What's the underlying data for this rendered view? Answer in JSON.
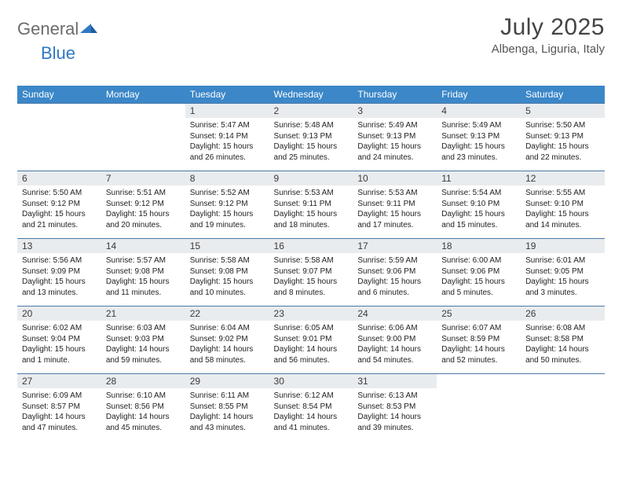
{
  "brand": {
    "part1": "General",
    "part2": "Blue"
  },
  "title": "July 2025",
  "location": "Albenga, Liguria, Italy",
  "header_bg": "#3b87c8",
  "daybar_bg": "#e9ecef",
  "rule_color": "#4a7aa8",
  "weekdays": [
    "Sunday",
    "Monday",
    "Tuesday",
    "Wednesday",
    "Thursday",
    "Friday",
    "Saturday"
  ],
  "weeks": [
    [
      null,
      null,
      {
        "n": "1",
        "sr": "5:47 AM",
        "ss": "9:14 PM",
        "dl": "15 hours and 26 minutes."
      },
      {
        "n": "2",
        "sr": "5:48 AM",
        "ss": "9:13 PM",
        "dl": "15 hours and 25 minutes."
      },
      {
        "n": "3",
        "sr": "5:49 AM",
        "ss": "9:13 PM",
        "dl": "15 hours and 24 minutes."
      },
      {
        "n": "4",
        "sr": "5:49 AM",
        "ss": "9:13 PM",
        "dl": "15 hours and 23 minutes."
      },
      {
        "n": "5",
        "sr": "5:50 AM",
        "ss": "9:13 PM",
        "dl": "15 hours and 22 minutes."
      }
    ],
    [
      {
        "n": "6",
        "sr": "5:50 AM",
        "ss": "9:12 PM",
        "dl": "15 hours and 21 minutes."
      },
      {
        "n": "7",
        "sr": "5:51 AM",
        "ss": "9:12 PM",
        "dl": "15 hours and 20 minutes."
      },
      {
        "n": "8",
        "sr": "5:52 AM",
        "ss": "9:12 PM",
        "dl": "15 hours and 19 minutes."
      },
      {
        "n": "9",
        "sr": "5:53 AM",
        "ss": "9:11 PM",
        "dl": "15 hours and 18 minutes."
      },
      {
        "n": "10",
        "sr": "5:53 AM",
        "ss": "9:11 PM",
        "dl": "15 hours and 17 minutes."
      },
      {
        "n": "11",
        "sr": "5:54 AM",
        "ss": "9:10 PM",
        "dl": "15 hours and 15 minutes."
      },
      {
        "n": "12",
        "sr": "5:55 AM",
        "ss": "9:10 PM",
        "dl": "15 hours and 14 minutes."
      }
    ],
    [
      {
        "n": "13",
        "sr": "5:56 AM",
        "ss": "9:09 PM",
        "dl": "15 hours and 13 minutes."
      },
      {
        "n": "14",
        "sr": "5:57 AM",
        "ss": "9:08 PM",
        "dl": "15 hours and 11 minutes."
      },
      {
        "n": "15",
        "sr": "5:58 AM",
        "ss": "9:08 PM",
        "dl": "15 hours and 10 minutes."
      },
      {
        "n": "16",
        "sr": "5:58 AM",
        "ss": "9:07 PM",
        "dl": "15 hours and 8 minutes."
      },
      {
        "n": "17",
        "sr": "5:59 AM",
        "ss": "9:06 PM",
        "dl": "15 hours and 6 minutes."
      },
      {
        "n": "18",
        "sr": "6:00 AM",
        "ss": "9:06 PM",
        "dl": "15 hours and 5 minutes."
      },
      {
        "n": "19",
        "sr": "6:01 AM",
        "ss": "9:05 PM",
        "dl": "15 hours and 3 minutes."
      }
    ],
    [
      {
        "n": "20",
        "sr": "6:02 AM",
        "ss": "9:04 PM",
        "dl": "15 hours and 1 minute."
      },
      {
        "n": "21",
        "sr": "6:03 AM",
        "ss": "9:03 PM",
        "dl": "14 hours and 59 minutes."
      },
      {
        "n": "22",
        "sr": "6:04 AM",
        "ss": "9:02 PM",
        "dl": "14 hours and 58 minutes."
      },
      {
        "n": "23",
        "sr": "6:05 AM",
        "ss": "9:01 PM",
        "dl": "14 hours and 56 minutes."
      },
      {
        "n": "24",
        "sr": "6:06 AM",
        "ss": "9:00 PM",
        "dl": "14 hours and 54 minutes."
      },
      {
        "n": "25",
        "sr": "6:07 AM",
        "ss": "8:59 PM",
        "dl": "14 hours and 52 minutes."
      },
      {
        "n": "26",
        "sr": "6:08 AM",
        "ss": "8:58 PM",
        "dl": "14 hours and 50 minutes."
      }
    ],
    [
      {
        "n": "27",
        "sr": "6:09 AM",
        "ss": "8:57 PM",
        "dl": "14 hours and 47 minutes."
      },
      {
        "n": "28",
        "sr": "6:10 AM",
        "ss": "8:56 PM",
        "dl": "14 hours and 45 minutes."
      },
      {
        "n": "29",
        "sr": "6:11 AM",
        "ss": "8:55 PM",
        "dl": "14 hours and 43 minutes."
      },
      {
        "n": "30",
        "sr": "6:12 AM",
        "ss": "8:54 PM",
        "dl": "14 hours and 41 minutes."
      },
      {
        "n": "31",
        "sr": "6:13 AM",
        "ss": "8:53 PM",
        "dl": "14 hours and 39 minutes."
      },
      null,
      null
    ]
  ],
  "labels": {
    "sunrise": "Sunrise:",
    "sunset": "Sunset:",
    "daylight": "Daylight:"
  }
}
